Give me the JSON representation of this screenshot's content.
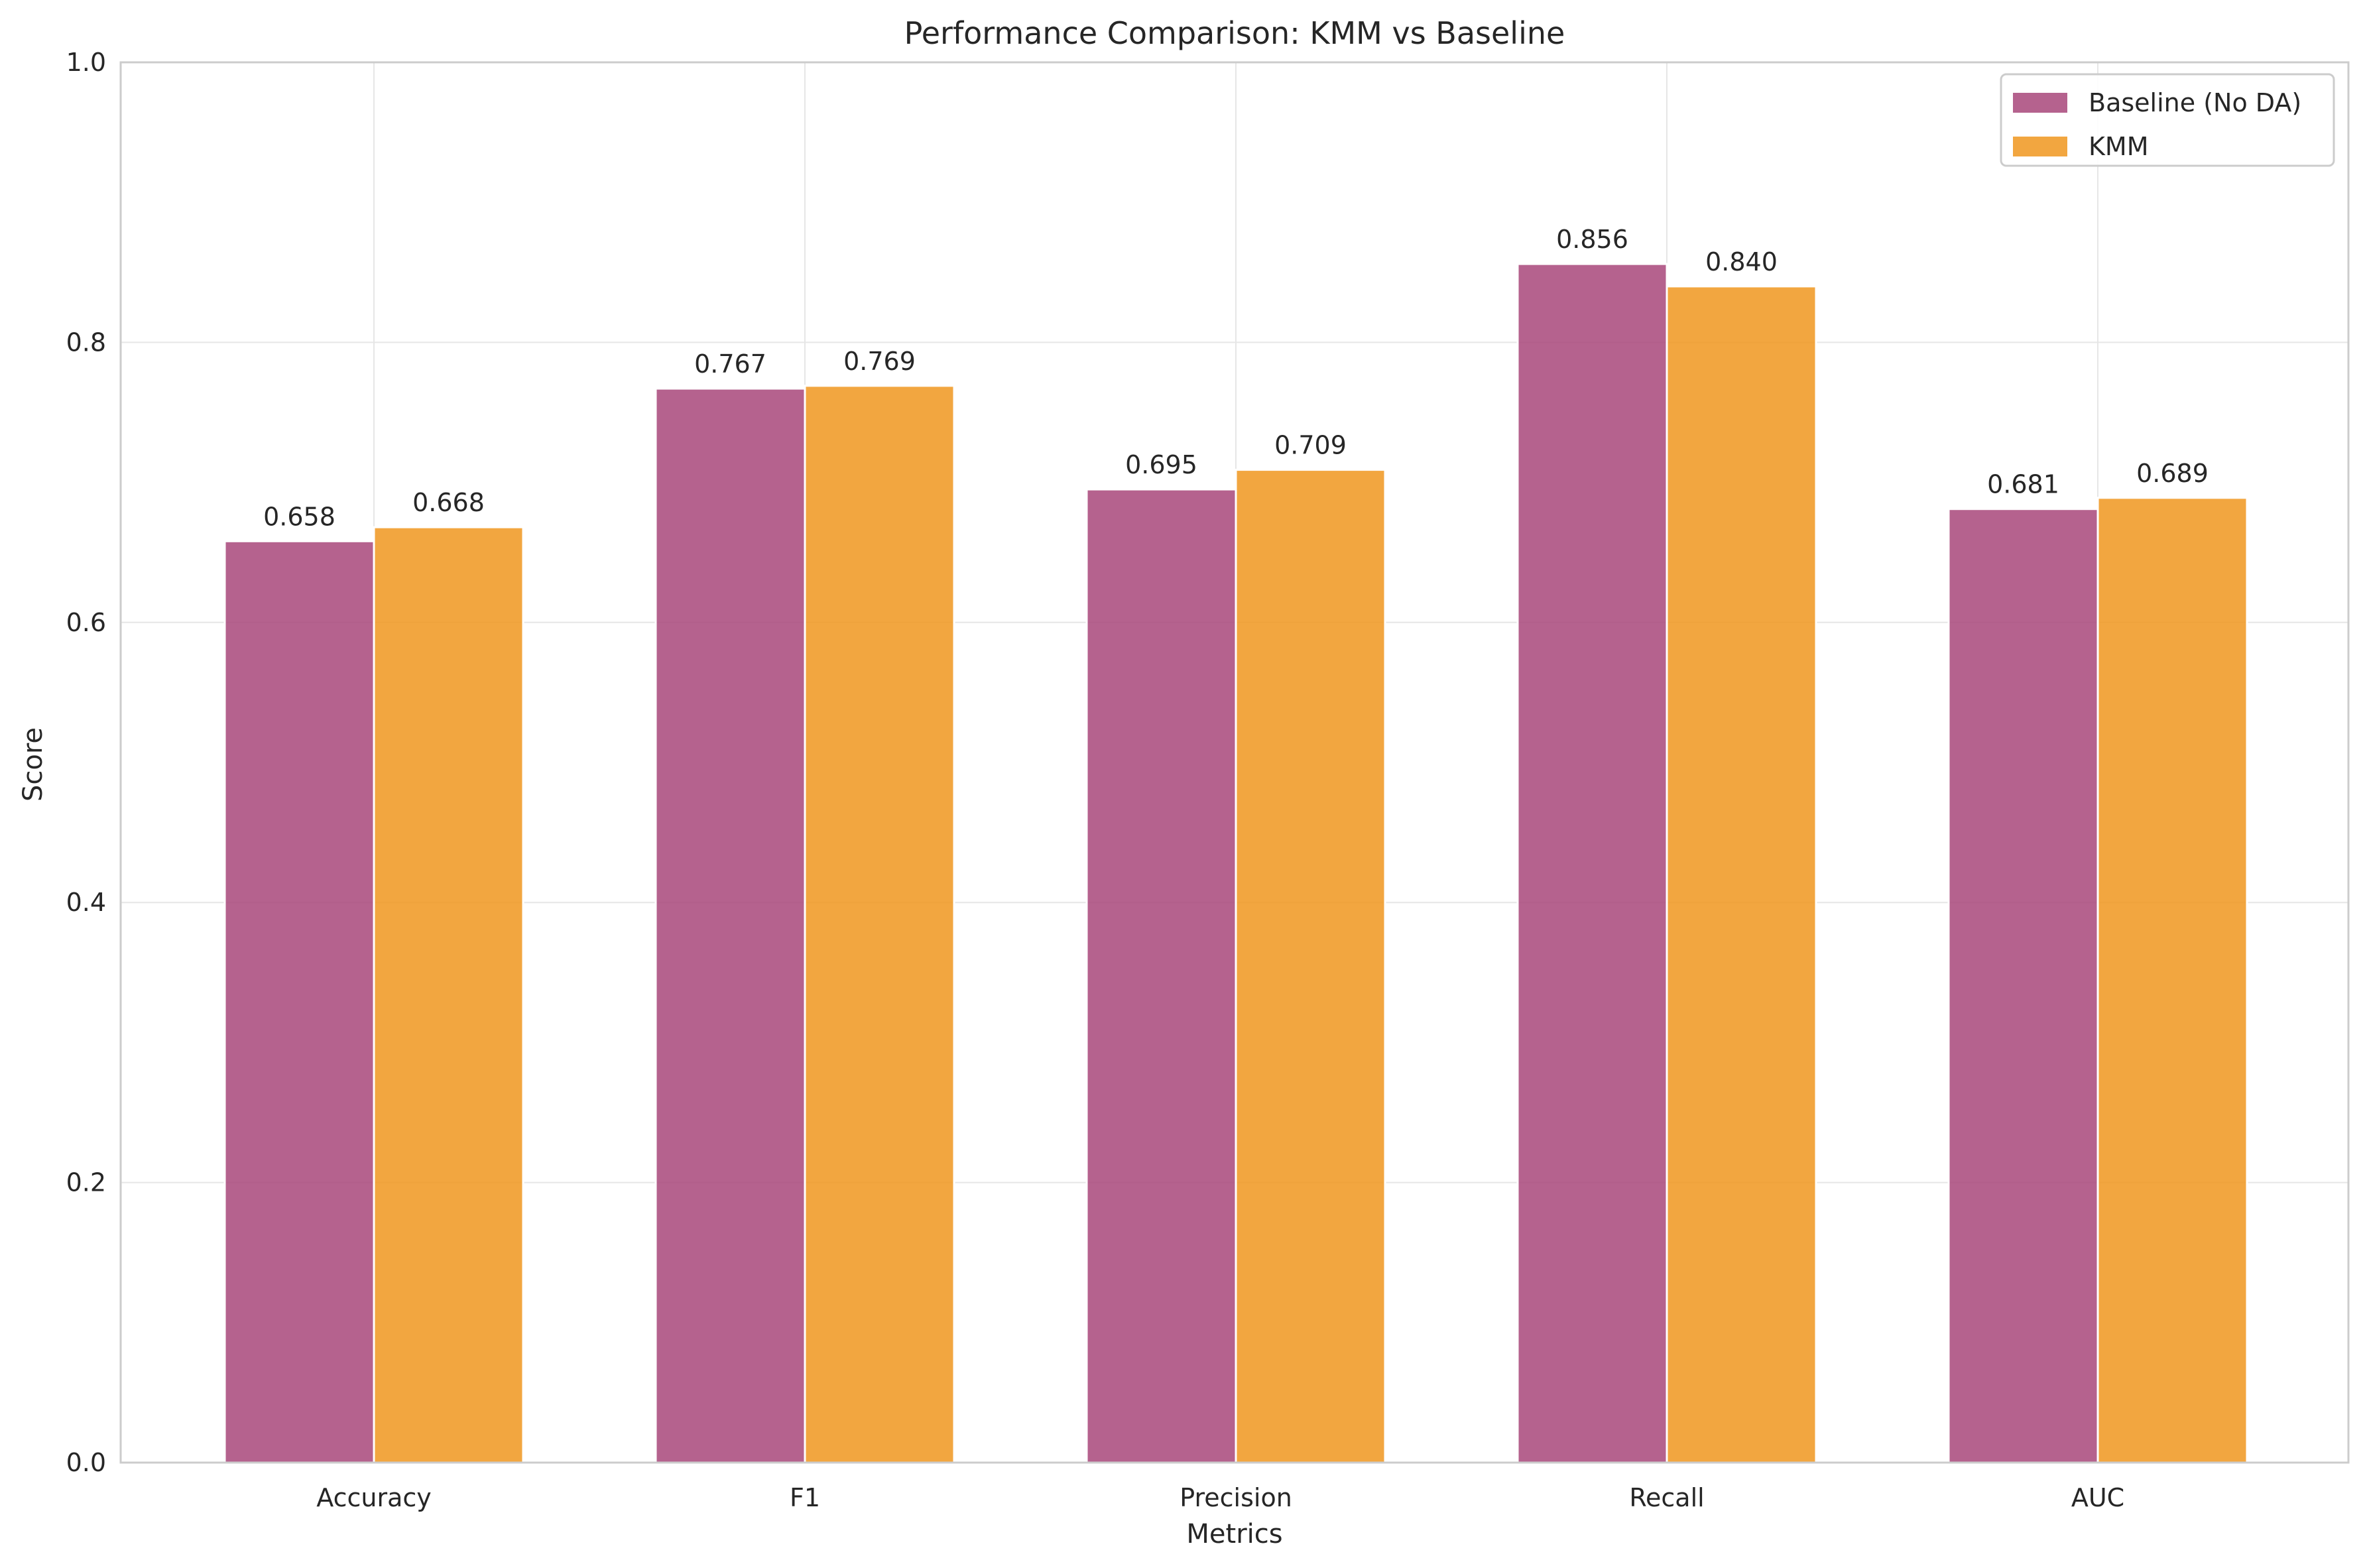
{
  "chart_data": {
    "type": "bar",
    "title": "Performance Comparison: KMM vs Baseline",
    "xlabel": "Metrics",
    "ylabel": "Score",
    "ylim": [
      0,
      1.0
    ],
    "yticks": [
      "0.0",
      "0.2",
      "0.4",
      "0.6",
      "0.8",
      "1.0"
    ],
    "ytick_values": [
      0,
      0.2,
      0.4,
      0.6,
      0.8,
      1.0
    ],
    "grid": true,
    "legend_position": "top-right",
    "categories": [
      "Accuracy",
      "F1",
      "Precision",
      "Recall",
      "AUC"
    ],
    "series": [
      {
        "name": "Baseline (No DA)",
        "color": "#a8477a",
        "values": [
          0.658,
          0.767,
          0.695,
          0.856,
          0.681
        ],
        "labels": [
          "0.658",
          "0.767",
          "0.695",
          "0.856",
          "0.681"
        ]
      },
      {
        "name": "KMM",
        "color": "#f0961e",
        "values": [
          0.668,
          0.769,
          0.709,
          0.84,
          0.689
        ],
        "labels": [
          "0.668",
          "0.769",
          "0.709",
          "0.840",
          "0.689"
        ]
      }
    ]
  }
}
